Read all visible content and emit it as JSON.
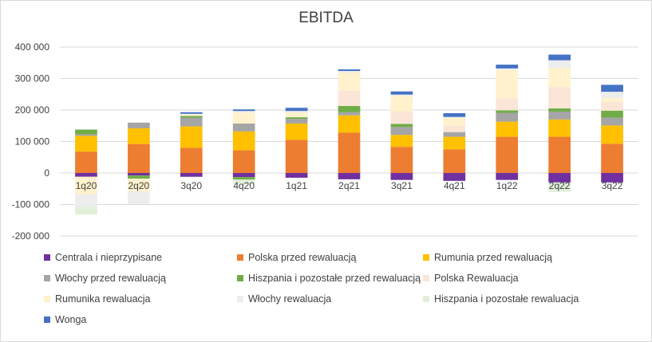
{
  "chart_data": {
    "type": "bar",
    "stacked": true,
    "title": "EBITDA",
    "xlabel": "",
    "ylabel": "",
    "ylim": [
      -200000,
      400000
    ],
    "yticks": [
      -200000,
      -100000,
      0,
      100000,
      200000,
      300000,
      400000
    ],
    "ytick_labels": [
      "-200 000",
      "-100 000",
      "0",
      "100 000",
      "200 000",
      "300 000",
      "400 000"
    ],
    "grid": true,
    "legend_position": "bottom",
    "categories": [
      "1q20",
      "2q20",
      "3q20",
      "4q20",
      "1q21",
      "2q21",
      "3q21",
      "4q21",
      "1q22",
      "2q22",
      "3q22"
    ],
    "series": [
      {
        "name": "Centrala i nieprzypisane",
        "color": "#7030a0",
        "values": [
          -12000,
          -8000,
          -12000,
          -13000,
          -15000,
          -20000,
          -22000,
          -25000,
          -22000,
          -30000,
          -30000
        ]
      },
      {
        "name": "Polska przed rewaluacją",
        "color": "#ed7d31",
        "values": [
          68000,
          92000,
          80000,
          72000,
          105000,
          128000,
          83000,
          75000,
          115000,
          115000,
          93000
        ]
      },
      {
        "name": "Rumunia przed rewaluacją",
        "color": "#ffc000",
        "values": [
          50000,
          50000,
          68000,
          60000,
          52000,
          55000,
          38000,
          40000,
          48000,
          55000,
          58000
        ]
      },
      {
        "name": "Włochy przed rewaluacją",
        "color": "#a5a5a5",
        "values": [
          5000,
          18000,
          28000,
          25000,
          15000,
          10000,
          25000,
          15000,
          28000,
          25000,
          25000
        ]
      },
      {
        "name": "Hiszpania i pozostałe przed rewaluacją",
        "color": "#70ad47",
        "values": [
          15000,
          -10000,
          5000,
          -8000,
          5000,
          20000,
          10000,
          0,
          8000,
          10000,
          22000
        ]
      },
      {
        "name": "Polska Rewaluacja",
        "color": "#fbe5d6",
        "values": [
          0,
          0,
          0,
          0,
          0,
          48000,
          40000,
          20000,
          38000,
          68000,
          28000
        ]
      },
      {
        "name": "Rumunika rewaluacja",
        "color": "#fff2cc",
        "values": [
          -55000,
          -40000,
          5000,
          35000,
          15000,
          58000,
          48000,
          25000,
          90000,
          60000,
          12000
        ]
      },
      {
        "name": "Włochy rewaluacja",
        "color": "#ededed",
        "values": [
          -40000,
          -40000,
          2000,
          5000,
          5000,
          5000,
          5000,
          3000,
          5000,
          25000,
          20000
        ]
      },
      {
        "name": "Hiszpania i pozostałe rewaluacja",
        "color": "#e2f0d9",
        "values": [
          -25000,
          0,
          0,
          -15000,
          0,
          0,
          0,
          0,
          0,
          -30000,
          0
        ]
      },
      {
        "name": "Wonga",
        "color": "#4472c4",
        "values": [
          0,
          0,
          5000,
          5000,
          10000,
          5000,
          10000,
          12000,
          12000,
          18000,
          22000
        ]
      }
    ]
  }
}
